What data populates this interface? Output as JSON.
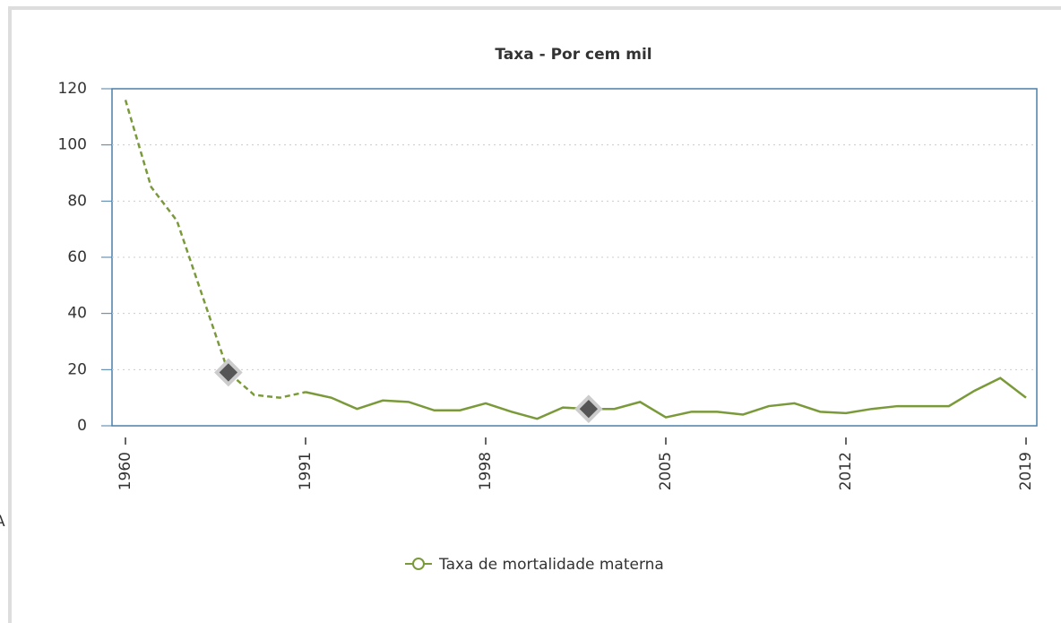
{
  "fragment": "A",
  "chart_data": {
    "type": "line",
    "title": "Taxa - Por cem mil",
    "categories": [
      "1960",
      null,
      null,
      null,
      null,
      null,
      null,
      "1991",
      null,
      null,
      null,
      null,
      null,
      null,
      "1998",
      null,
      null,
      null,
      null,
      null,
      null,
      "2005",
      null,
      null,
      null,
      null,
      null,
      null,
      "2012",
      null,
      null,
      null,
      null,
      null,
      null,
      "2019"
    ],
    "series": [
      {
        "name": "Taxa de mortalidade materna",
        "color": "#7a9a3a",
        "values": [
          116,
          85,
          73,
          46,
          19,
          11,
          10,
          12,
          10,
          6,
          9,
          8.5,
          5.5,
          5.5,
          8,
          5,
          2.5,
          6.5,
          6,
          6,
          8.5,
          3,
          5,
          5,
          4,
          7,
          8,
          5,
          4.5,
          6,
          7,
          7,
          7,
          12.5,
          17,
          10
        ]
      }
    ],
    "highlight_indices": [
      4,
      18
    ],
    "ylim": [
      0,
      120
    ],
    "yticks": [
      0,
      20,
      40,
      60,
      80,
      100,
      120
    ],
    "grid": true
  }
}
